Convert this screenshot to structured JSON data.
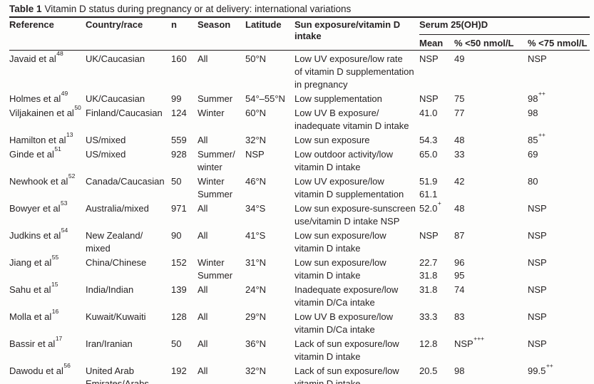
{
  "title": {
    "label": "Table 1",
    "caption": "Vitamin D status during pregnancy or at delivery: international variations"
  },
  "colors": {
    "text": "#272324",
    "rule": "#211d1e",
    "background": "#fdfdfc"
  },
  "table": {
    "headers": {
      "reference": "Reference",
      "country": "Country/race",
      "n": "n",
      "season": "Season",
      "latitude": "Latitude",
      "exposure": "Sun exposure/vitamin D intake",
      "serum_group": "Serum 25(OH)D",
      "mean": "Mean",
      "pct50": "% <50 nmol/L",
      "pct75": "% <75 nmol/L"
    },
    "rows": [
      {
        "reference": {
          "t": "Javaid et al",
          "sup": "48"
        },
        "country": [
          "UK/Caucasian"
        ],
        "n": "160",
        "season": [
          "All"
        ],
        "latitude": "50°N",
        "exposure": [
          "Low UV exposure/low rate",
          "of vitamin D supplementation",
          "in pregnancy"
        ],
        "mean": [
          {
            "t": "NSP"
          }
        ],
        "pct50": [
          {
            "t": "49"
          }
        ],
        "pct75": [
          {
            "t": "NSP"
          }
        ]
      },
      {
        "reference": {
          "t": "Holmes et al",
          "sup": "49"
        },
        "country": [
          "UK/Caucasian"
        ],
        "n": "99",
        "season": [
          "Summer"
        ],
        "latitude": "54°–55°N",
        "exposure": [
          "Low supplementation"
        ],
        "mean": [
          {
            "t": "NSP"
          }
        ],
        "pct50": [
          {
            "t": "75"
          }
        ],
        "pct75": [
          {
            "t": "98",
            "sup": "++"
          }
        ]
      },
      {
        "reference": {
          "t": "Viljakainen et al",
          "sup": "50"
        },
        "country": [
          "Finland/Caucasian"
        ],
        "n": "124",
        "season": [
          "Winter"
        ],
        "latitude": "60°N",
        "exposure": [
          "Low UV B exposure/",
          "inadequate vitamin D intake"
        ],
        "mean": [
          {
            "t": "41.0"
          }
        ],
        "pct50": [
          {
            "t": "77"
          }
        ],
        "pct75": [
          {
            "t": "98"
          }
        ]
      },
      {
        "reference": {
          "t": "Hamilton et al",
          "sup": "13"
        },
        "country": [
          "US/mixed"
        ],
        "n": "559",
        "season": [
          "All"
        ],
        "latitude": "32°N",
        "exposure": [
          "Low sun exposure"
        ],
        "mean": [
          {
            "t": "54.3"
          }
        ],
        "pct50": [
          {
            "t": "48"
          }
        ],
        "pct75": [
          {
            "t": "85",
            "sup": "++"
          }
        ]
      },
      {
        "reference": {
          "t": "Ginde et al",
          "sup": "51"
        },
        "country": [
          "US/mixed"
        ],
        "n": "928",
        "season": [
          "Summer/",
          "winter"
        ],
        "latitude": "NSP",
        "exposure": [
          "Low outdoor activity/low",
          "vitamin D intake"
        ],
        "mean": [
          {
            "t": "65.0"
          }
        ],
        "pct50": [
          {
            "t": "33"
          }
        ],
        "pct75": [
          {
            "t": "69"
          }
        ]
      },
      {
        "reference": {
          "t": "Newhook et al",
          "sup": "52"
        },
        "country": [
          "Canada/Caucasian"
        ],
        "n": "50",
        "season": [
          "Winter",
          "Summer"
        ],
        "latitude": "46°N",
        "exposure": [
          "Low UV exposure/low",
          "vitamin D supplementation"
        ],
        "mean": [
          {
            "t": "51.9"
          },
          {
            "t": "61.1"
          }
        ],
        "pct50": [
          {
            "t": "42"
          }
        ],
        "pct75": [
          {
            "t": "80"
          }
        ]
      },
      {
        "reference": {
          "t": "Bowyer et al",
          "sup": "53"
        },
        "country": [
          "Australia/mixed"
        ],
        "n": "971",
        "season": [
          "All"
        ],
        "latitude": "34°S",
        "exposure": [
          "Low sun exposure-sunscreen",
          "use/vitamin D intake NSP"
        ],
        "mean": [
          {
            "t": "52.0",
            "sup": "+"
          }
        ],
        "pct50": [
          {
            "t": "48"
          }
        ],
        "pct75": [
          {
            "t": "NSP"
          }
        ]
      },
      {
        "reference": {
          "t": "Judkins et al",
          "sup": "54"
        },
        "country": [
          "New Zealand/",
          "mixed"
        ],
        "n": "90",
        "season": [
          "All"
        ],
        "latitude": "41°S",
        "exposure": [
          "Low sun exposure/low",
          "vitamin D intake"
        ],
        "mean": [
          {
            "t": "NSP"
          }
        ],
        "pct50": [
          {
            "t": "87"
          }
        ],
        "pct75": [
          {
            "t": "NSP"
          }
        ]
      },
      {
        "reference": {
          "t": "Jiang et al",
          "sup": "55"
        },
        "country": [
          "China/Chinese"
        ],
        "n": "152",
        "season": [
          "Winter",
          "Summer"
        ],
        "latitude": "31°N",
        "exposure": [
          "Low sun exposure/low",
          "vitamin D intake"
        ],
        "mean": [
          {
            "t": "22.7"
          },
          {
            "t": "31.8"
          }
        ],
        "pct50": [
          {
            "t": "96"
          },
          {
            "t": "95"
          }
        ],
        "pct75": [
          {
            "t": "NSP"
          }
        ]
      },
      {
        "reference": {
          "t": "Sahu et al",
          "sup": "15"
        },
        "country": [
          "India/Indian"
        ],
        "n": "139",
        "season": [
          "All"
        ],
        "latitude": "24°N",
        "exposure": [
          "Inadequate exposure/low",
          "vitamin D/Ca intake"
        ],
        "mean": [
          {
            "t": "31.8"
          }
        ],
        "pct50": [
          {
            "t": "74"
          }
        ],
        "pct75": [
          {
            "t": "NSP"
          }
        ]
      },
      {
        "reference": {
          "t": "Molla et al",
          "sup": "16"
        },
        "country": [
          "Kuwait/Kuwaiti"
        ],
        "n": "128",
        "season": [
          "All"
        ],
        "latitude": "29°N",
        "exposure": [
          "Low UV B exposure/low",
          "vitamin D/Ca intake"
        ],
        "mean": [
          {
            "t": "33.3"
          }
        ],
        "pct50": [
          {
            "t": "83"
          }
        ],
        "pct75": [
          {
            "t": "NSP"
          }
        ]
      },
      {
        "reference": {
          "t": "Bassir et al",
          "sup": "17"
        },
        "country": [
          "Iran/Iranian"
        ],
        "n": "50",
        "season": [
          "All"
        ],
        "latitude": "36°N",
        "exposure": [
          "Lack of sun exposure/low",
          "vitamin D intake"
        ],
        "mean": [
          {
            "t": "12.8"
          }
        ],
        "pct50": [
          {
            "t": "NSP",
            "sup": "+++"
          }
        ],
        "pct75": [
          {
            "t": "NSP"
          }
        ]
      },
      {
        "reference": {
          "t": "Dawodu et al",
          "sup": "56"
        },
        "country": [
          "United Arab",
          "Emirates/Arabs"
        ],
        "n": "192",
        "season": [
          "All"
        ],
        "latitude": "32°N",
        "exposure": [
          "Lack of sun exposure/low",
          "vitamin D intake"
        ],
        "mean": [
          {
            "t": "20.5"
          }
        ],
        "pct50": [
          {
            "t": "98"
          }
        ],
        "pct75": [
          {
            "t": "99.5",
            "sup": "++"
          }
        ]
      }
    ]
  }
}
